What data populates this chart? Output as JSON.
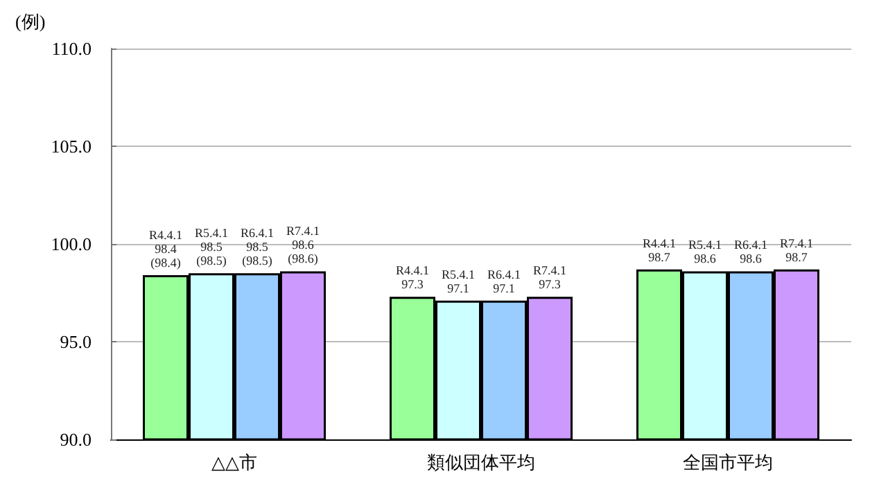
{
  "chart_data": {
    "type": "bar",
    "ylabel": "(例)",
    "categories": [
      "△△市",
      "類似団体平均",
      "全国市平均"
    ],
    "series": [
      {
        "name": "R4.4.1",
        "color": "#99ff99",
        "values": [
          98.4,
          97.3,
          98.7
        ],
        "value_labels": [
          "98.4\n(98.4)",
          "97.3",
          "98.7"
        ]
      },
      {
        "name": "R5.4.1",
        "color": "#ccffff",
        "values": [
          98.5,
          97.1,
          98.6
        ],
        "value_labels": [
          "98.5\n(98.5)",
          "97.1",
          "98.6"
        ]
      },
      {
        "name": "R6.4.1",
        "color": "#99ccff",
        "values": [
          98.5,
          97.1,
          98.6
        ],
        "value_labels": [
          "98.5\n(98.5)",
          "97.1",
          "98.6"
        ]
      },
      {
        "name": "R7.4.1",
        "color": "#cc99ff",
        "values": [
          98.6,
          97.3,
          98.7
        ],
        "value_labels": [
          "98.6\n(98.6)",
          "97.3",
          "98.7"
        ]
      }
    ],
    "ylim": [
      90,
      110
    ],
    "yticks": [
      {
        "value": 90,
        "label": "90.0"
      },
      {
        "value": 95,
        "label": "95.0"
      },
      {
        "value": 100,
        "label": "100.0"
      },
      {
        "value": 105,
        "label": "105.0"
      },
      {
        "value": 110,
        "label": "110.0"
      }
    ],
    "grid": "y",
    "legend": false
  }
}
